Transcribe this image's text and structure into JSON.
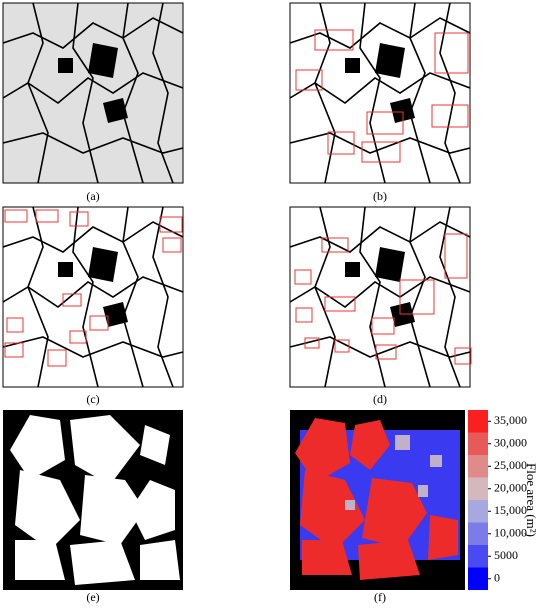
{
  "panels": [
    {
      "label": "(a)"
    },
    {
      "label": "(b)"
    },
    {
      "label": "(c)"
    },
    {
      "label": "(d)"
    },
    {
      "label": "(e)"
    },
    {
      "label": "(f)"
    }
  ],
  "colorbar": {
    "title": "Floe area (m²)",
    "ticks": [
      0,
      5000,
      {
        "value": 10000,
        "label": "10,000"
      },
      {
        "value": 15000,
        "label": "15,000"
      },
      {
        "value": 20000,
        "label": "20,000"
      },
      {
        "value": 25000,
        "label": "25,000"
      },
      {
        "value": 30000,
        "label": "30,000"
      },
      {
        "value": 35000,
        "label": "35,000"
      }
    ],
    "colors": [
      "#0000ff",
      "#4a4af2",
      "#7c7ce8",
      "#a8a8e0",
      "#d6b8bc",
      "#e08a8a",
      "#e85a5a",
      "#fa2020"
    ]
  }
}
